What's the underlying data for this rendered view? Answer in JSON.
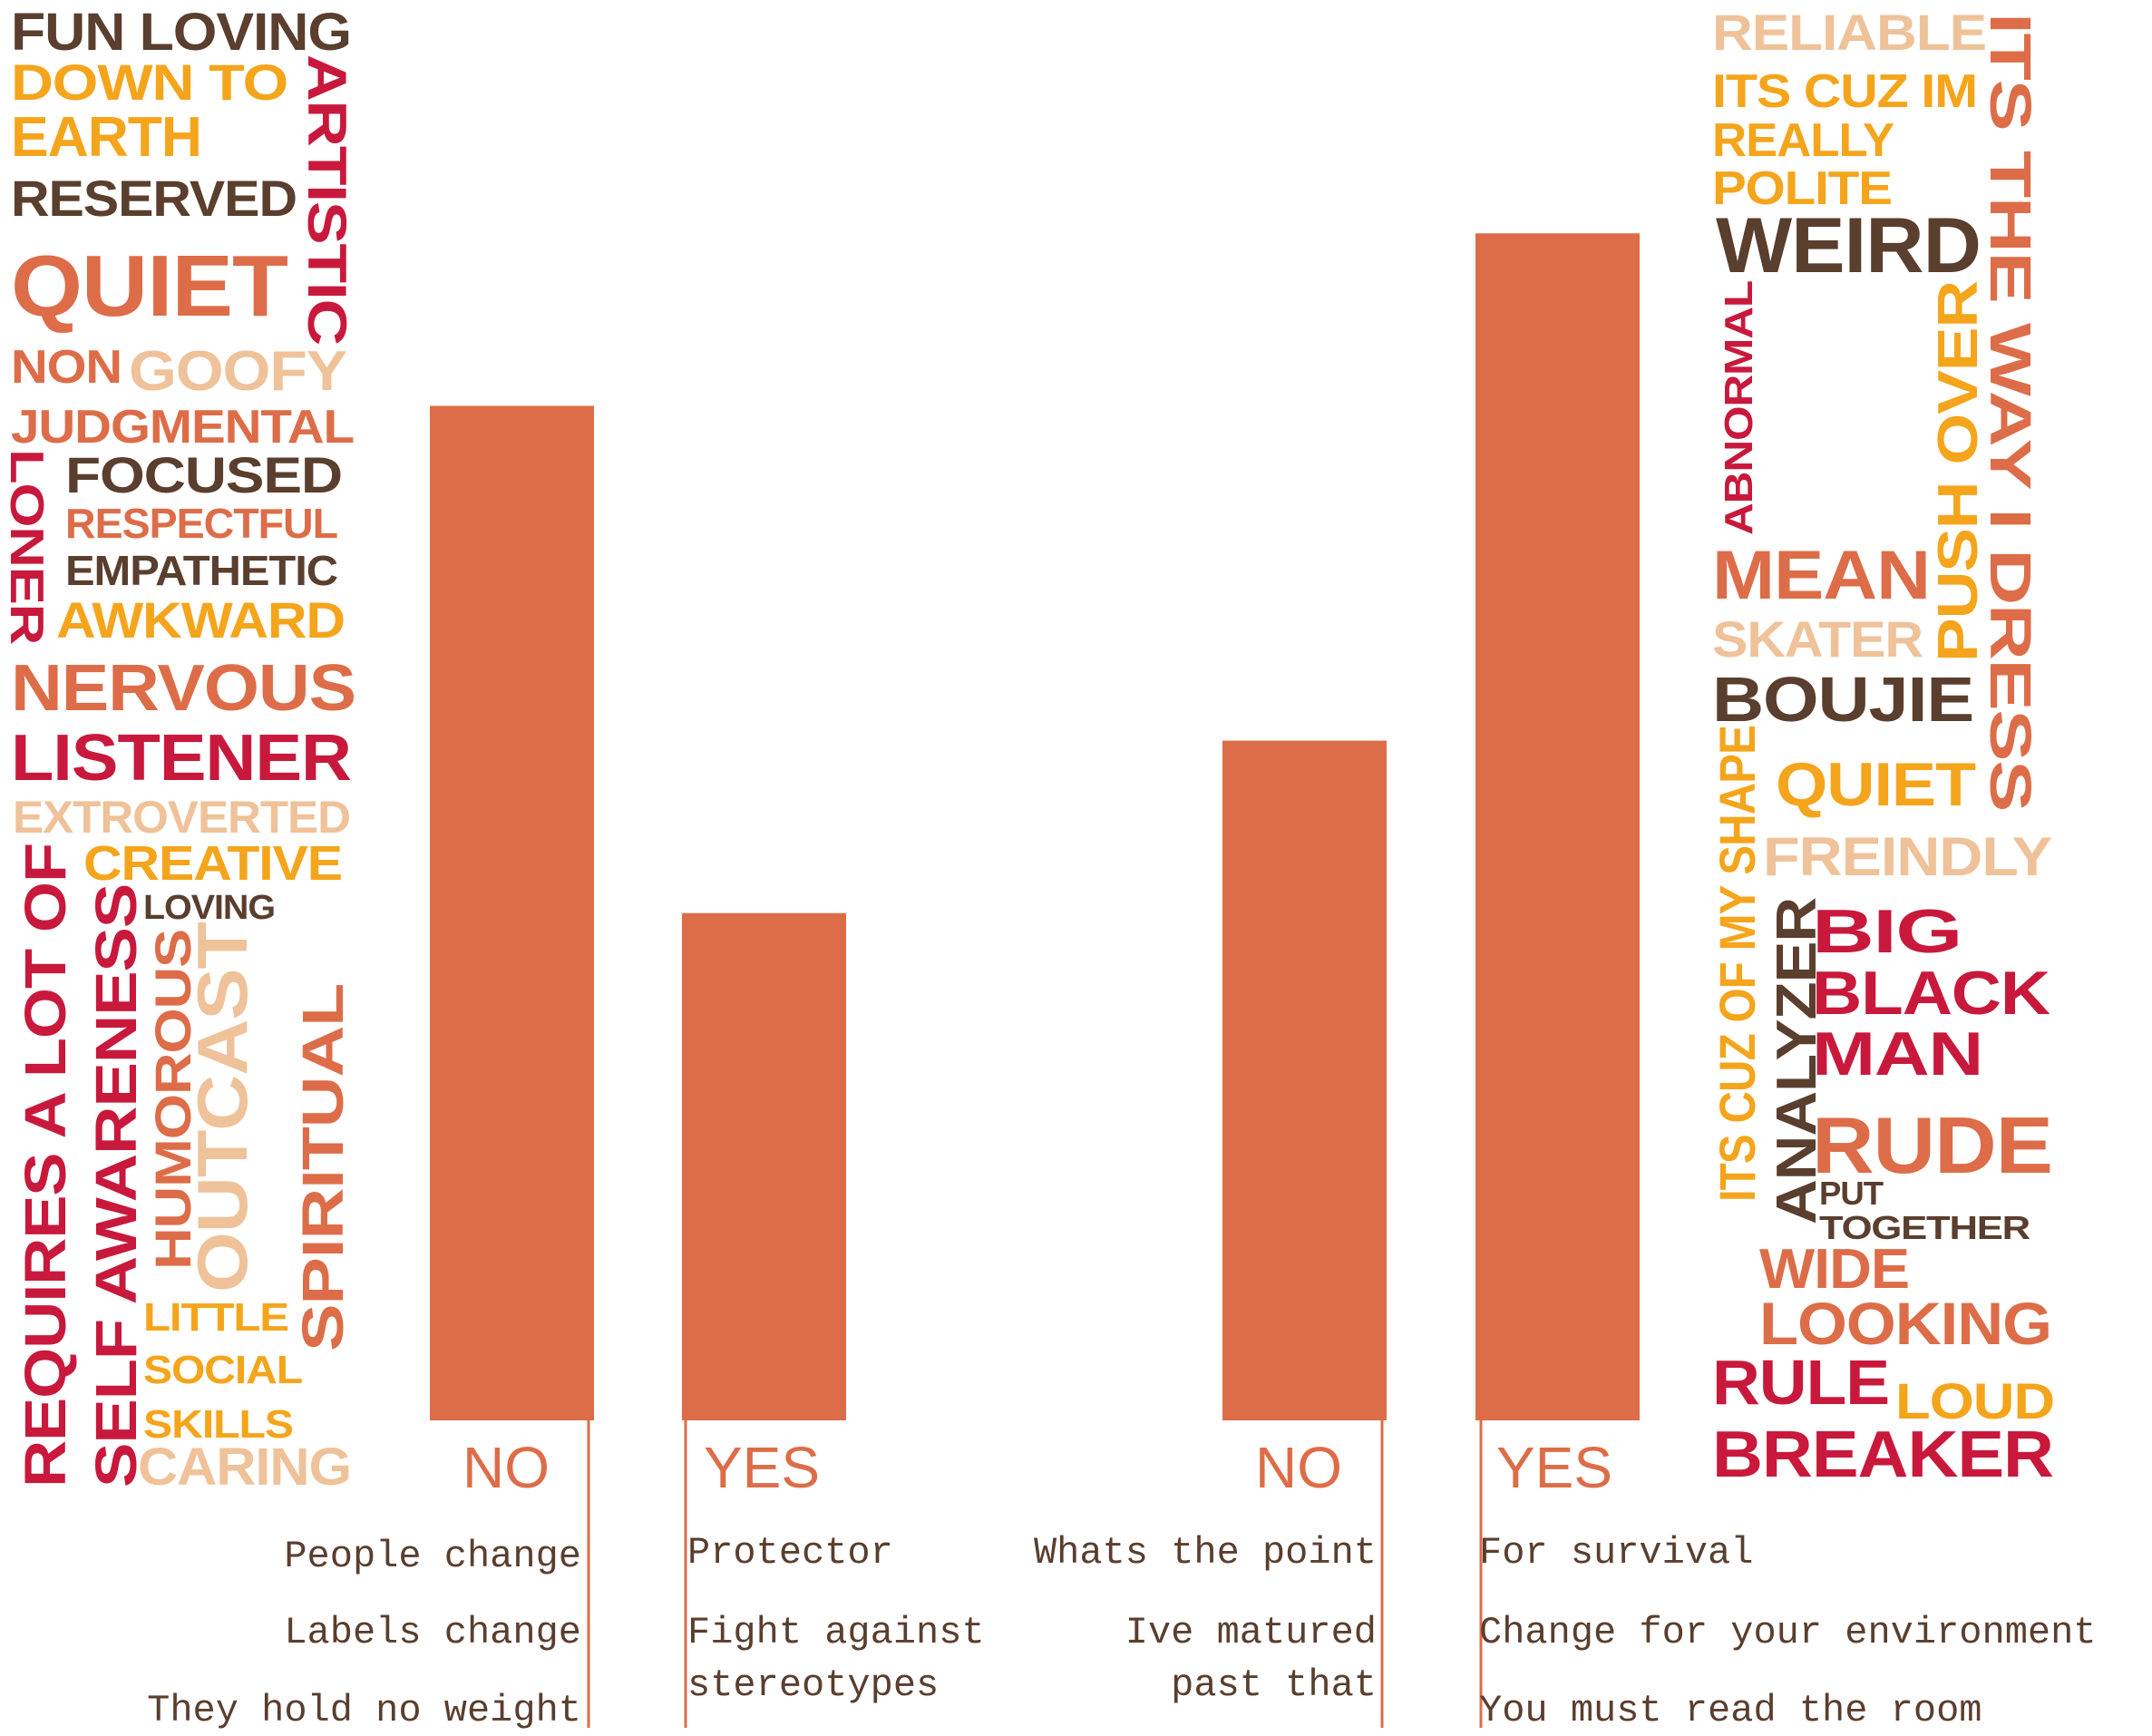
{
  "palette": {
    "bar": "#DD6D48",
    "brown": "#5A3E2E",
    "red": "#C8193C",
    "orange": "#DD6D48",
    "amber": "#F4A51C",
    "peach": "#EFC29A"
  },
  "chart_data": {
    "type": "bar",
    "categories": [
      "NO",
      "YES",
      "NO",
      "YES"
    ],
    "values": [
      1.0,
      0.5,
      0.67,
      1.17
    ],
    "ylim": [
      0,
      1.4
    ],
    "grid": false,
    "reasons": [
      [
        "People change",
        "Labels change",
        "They hold no weight"
      ],
      [
        "Protector",
        "Fight against",
        "stereotypes"
      ],
      [
        "Whats the point",
        "Ive matured",
        "past that"
      ],
      [
        "For survival",
        "Change for your environment",
        "You must read the room"
      ]
    ]
  },
  "left_words": [
    {
      "text": "FUN LOVING",
      "color": "brown"
    },
    {
      "text": "DOWN TO",
      "color": "amber"
    },
    {
      "text": "EARTH",
      "color": "amber"
    },
    {
      "text": "RESERVED",
      "color": "brown"
    },
    {
      "text": "ARTISTIC",
      "color": "red"
    },
    {
      "text": "QUIET",
      "color": "orange"
    },
    {
      "text": "NON",
      "color": "orange"
    },
    {
      "text": "GOOFY",
      "color": "peach"
    },
    {
      "text": "JUDGMENTAL",
      "color": "orange"
    },
    {
      "text": "FOCUSED",
      "color": "brown"
    },
    {
      "text": "LONER",
      "color": "red"
    },
    {
      "text": "RESPECTFUL",
      "color": "orange"
    },
    {
      "text": "EMPATHETIC",
      "color": "brown"
    },
    {
      "text": "AWKWARD",
      "color": "amber"
    },
    {
      "text": "NERVOUS",
      "color": "orange"
    },
    {
      "text": "LISTENER",
      "color": "red"
    },
    {
      "text": "EXTROVERTED",
      "color": "peach"
    },
    {
      "text": "CREATIVE",
      "color": "amber"
    },
    {
      "text": "LOVING",
      "color": "brown"
    },
    {
      "text": "REQUIRES A LOT OF",
      "color": "red"
    },
    {
      "text": "SELF AWARENESS",
      "color": "red"
    },
    {
      "text": "HUMOROUS",
      "color": "orange"
    },
    {
      "text": "OUTCAST",
      "color": "peach"
    },
    {
      "text": "SPIRITUAL",
      "color": "orange"
    },
    {
      "text": "LITTLE",
      "color": "amber"
    },
    {
      "text": "SOCIAL",
      "color": "amber"
    },
    {
      "text": "SKILLS",
      "color": "amber"
    },
    {
      "text": "CARING",
      "color": "peach"
    }
  ],
  "right_words": [
    {
      "text": "RELIABLE",
      "color": "peach"
    },
    {
      "text": "ITS THE WAY I DRESS",
      "color": "orange"
    },
    {
      "text": "ITS CUZ IM",
      "color": "amber"
    },
    {
      "text": "REALLY",
      "color": "amber"
    },
    {
      "text": "POLITE",
      "color": "amber"
    },
    {
      "text": "WEIRD",
      "color": "brown"
    },
    {
      "text": "ABNORMAL",
      "color": "red"
    },
    {
      "text": "PUSH OVER",
      "color": "amber"
    },
    {
      "text": "MEAN",
      "color": "orange"
    },
    {
      "text": "SKATER",
      "color": "peach"
    },
    {
      "text": "BOUJIE",
      "color": "brown"
    },
    {
      "text": "ITS CUZ OF MY SHAPE",
      "color": "amber"
    },
    {
      "text": "QUIET",
      "color": "amber"
    },
    {
      "text": "FREINDLY",
      "color": "peach"
    },
    {
      "text": "ANALYZER",
      "color": "brown"
    },
    {
      "text": "BIG",
      "color": "red"
    },
    {
      "text": "BLACK",
      "color": "red"
    },
    {
      "text": "MAN",
      "color": "red"
    },
    {
      "text": "RUDE",
      "color": "orange"
    },
    {
      "text": "PUT",
      "color": "brown"
    },
    {
      "text": "TOGETHER",
      "color": "brown"
    },
    {
      "text": "WIDE",
      "color": "orange"
    },
    {
      "text": "LOOKING",
      "color": "orange"
    },
    {
      "text": "RULE",
      "color": "red"
    },
    {
      "text": "LOUD",
      "color": "amber"
    },
    {
      "text": "BREAKER",
      "color": "red"
    }
  ]
}
